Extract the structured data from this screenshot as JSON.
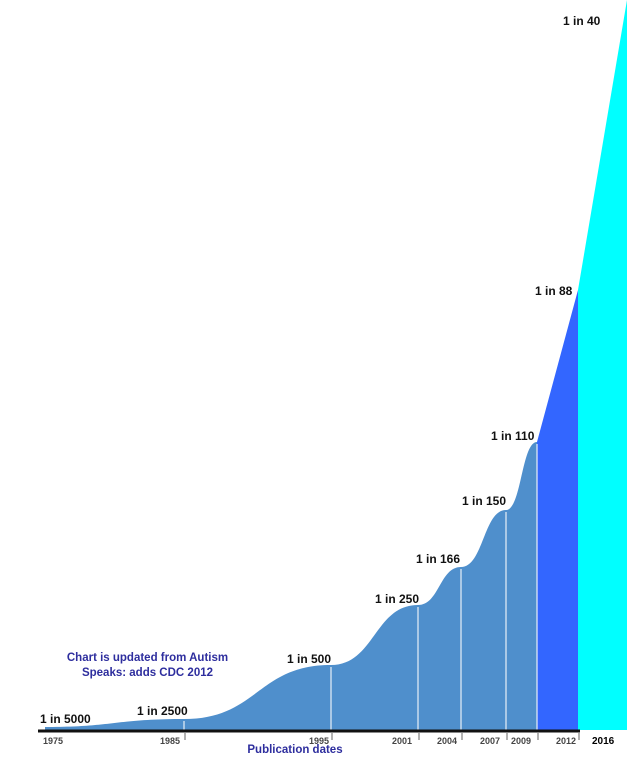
{
  "chart_data": {
    "type": "area",
    "title": "",
    "xlabel": "Publication dates",
    "ylabel": "",
    "annotation": "Chart is updated from Autism Speaks: adds CDC 2012",
    "categories": [
      "1975",
      "1985",
      "1995",
      "2001",
      "2004",
      "2007",
      "2009",
      "2012",
      "2016"
    ],
    "labels": [
      "1 in 5000",
      "1 in 2500",
      "1 in 500",
      "1 in 250",
      "1 in 166",
      "1 in 150",
      "1 in 110",
      "1 in 88",
      "1 in 40"
    ],
    "values_one_in": [
      5000,
      2500,
      500,
      250,
      166,
      150,
      110,
      88,
      40
    ],
    "grid": false,
    "colors": {
      "base": "#4f8fcc",
      "cdc2012": "#3366ff",
      "update2016": "#00ffff",
      "note": "#2e2e9e"
    }
  }
}
